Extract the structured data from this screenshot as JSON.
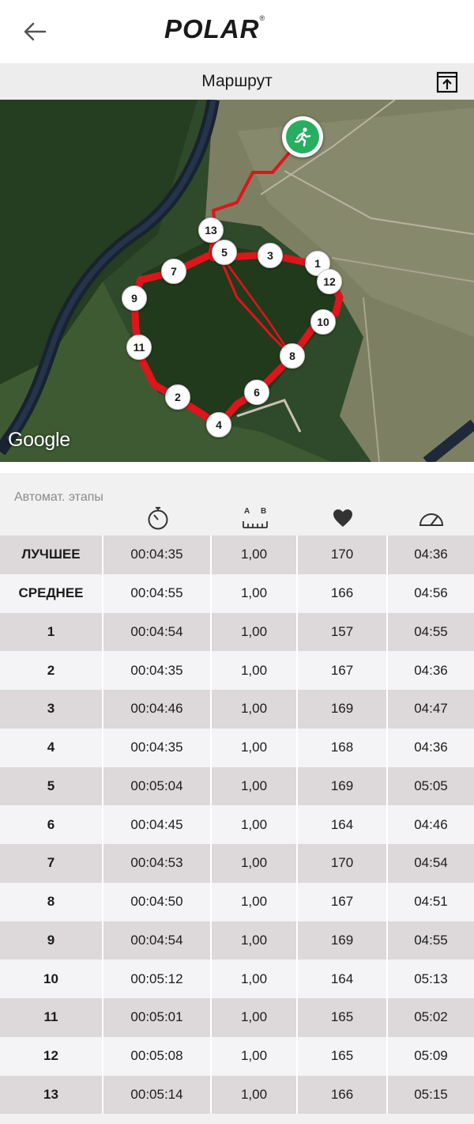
{
  "header": {
    "logo_text": "POLAR",
    "logo_mark": "®",
    "back_icon": "arrow-left-icon"
  },
  "route": {
    "title": "Маршрут",
    "share_icon": "share-export-icon"
  },
  "map": {
    "attribution": "Google",
    "start_icon": "runner-icon",
    "start_color": "#27ae60",
    "route_color": "#e0141b",
    "lap_markers": [
      "13",
      "5",
      "3",
      "1",
      "12",
      "7",
      "9",
      "10",
      "11",
      "8",
      "6",
      "2",
      "4"
    ]
  },
  "laps": {
    "title": "Автомат. этапы",
    "columns": [
      {
        "icon": "stopwatch-icon"
      },
      {
        "icon": "distance-ruler-icon",
        "label_a": "A",
        "label_b": "B"
      },
      {
        "icon": "heart-icon"
      },
      {
        "icon": "speedometer-icon"
      }
    ],
    "rows": [
      {
        "label": "ЛУЧШЕЕ",
        "time": "00:04:35",
        "distance": "1,00",
        "hr": "170",
        "pace": "04:36"
      },
      {
        "label": "СРЕДНЕЕ",
        "time": "00:04:55",
        "distance": "1,00",
        "hr": "166",
        "pace": "04:56"
      },
      {
        "label": "1",
        "time": "00:04:54",
        "distance": "1,00",
        "hr": "157",
        "pace": "04:55"
      },
      {
        "label": "2",
        "time": "00:04:35",
        "distance": "1,00",
        "hr": "167",
        "pace": "04:36"
      },
      {
        "label": "3",
        "time": "00:04:46",
        "distance": "1,00",
        "hr": "169",
        "pace": "04:47"
      },
      {
        "label": "4",
        "time": "00:04:35",
        "distance": "1,00",
        "hr": "168",
        "pace": "04:36"
      },
      {
        "label": "5",
        "time": "00:05:04",
        "distance": "1,00",
        "hr": "169",
        "pace": "05:05"
      },
      {
        "label": "6",
        "time": "00:04:45",
        "distance": "1,00",
        "hr": "164",
        "pace": "04:46"
      },
      {
        "label": "7",
        "time": "00:04:53",
        "distance": "1,00",
        "hr": "170",
        "pace": "04:54"
      },
      {
        "label": "8",
        "time": "00:04:50",
        "distance": "1,00",
        "hr": "167",
        "pace": "04:51"
      },
      {
        "label": "9",
        "time": "00:04:54",
        "distance": "1,00",
        "hr": "169",
        "pace": "04:55"
      },
      {
        "label": "10",
        "time": "00:05:12",
        "distance": "1,00",
        "hr": "164",
        "pace": "05:13"
      },
      {
        "label": "11",
        "time": "00:05:01",
        "distance": "1,00",
        "hr": "165",
        "pace": "05:02"
      },
      {
        "label": "12",
        "time": "00:05:08",
        "distance": "1,00",
        "hr": "165",
        "pace": "05:09"
      },
      {
        "label": "13",
        "time": "00:05:14",
        "distance": "1,00",
        "hr": "166",
        "pace": "05:15"
      }
    ]
  }
}
